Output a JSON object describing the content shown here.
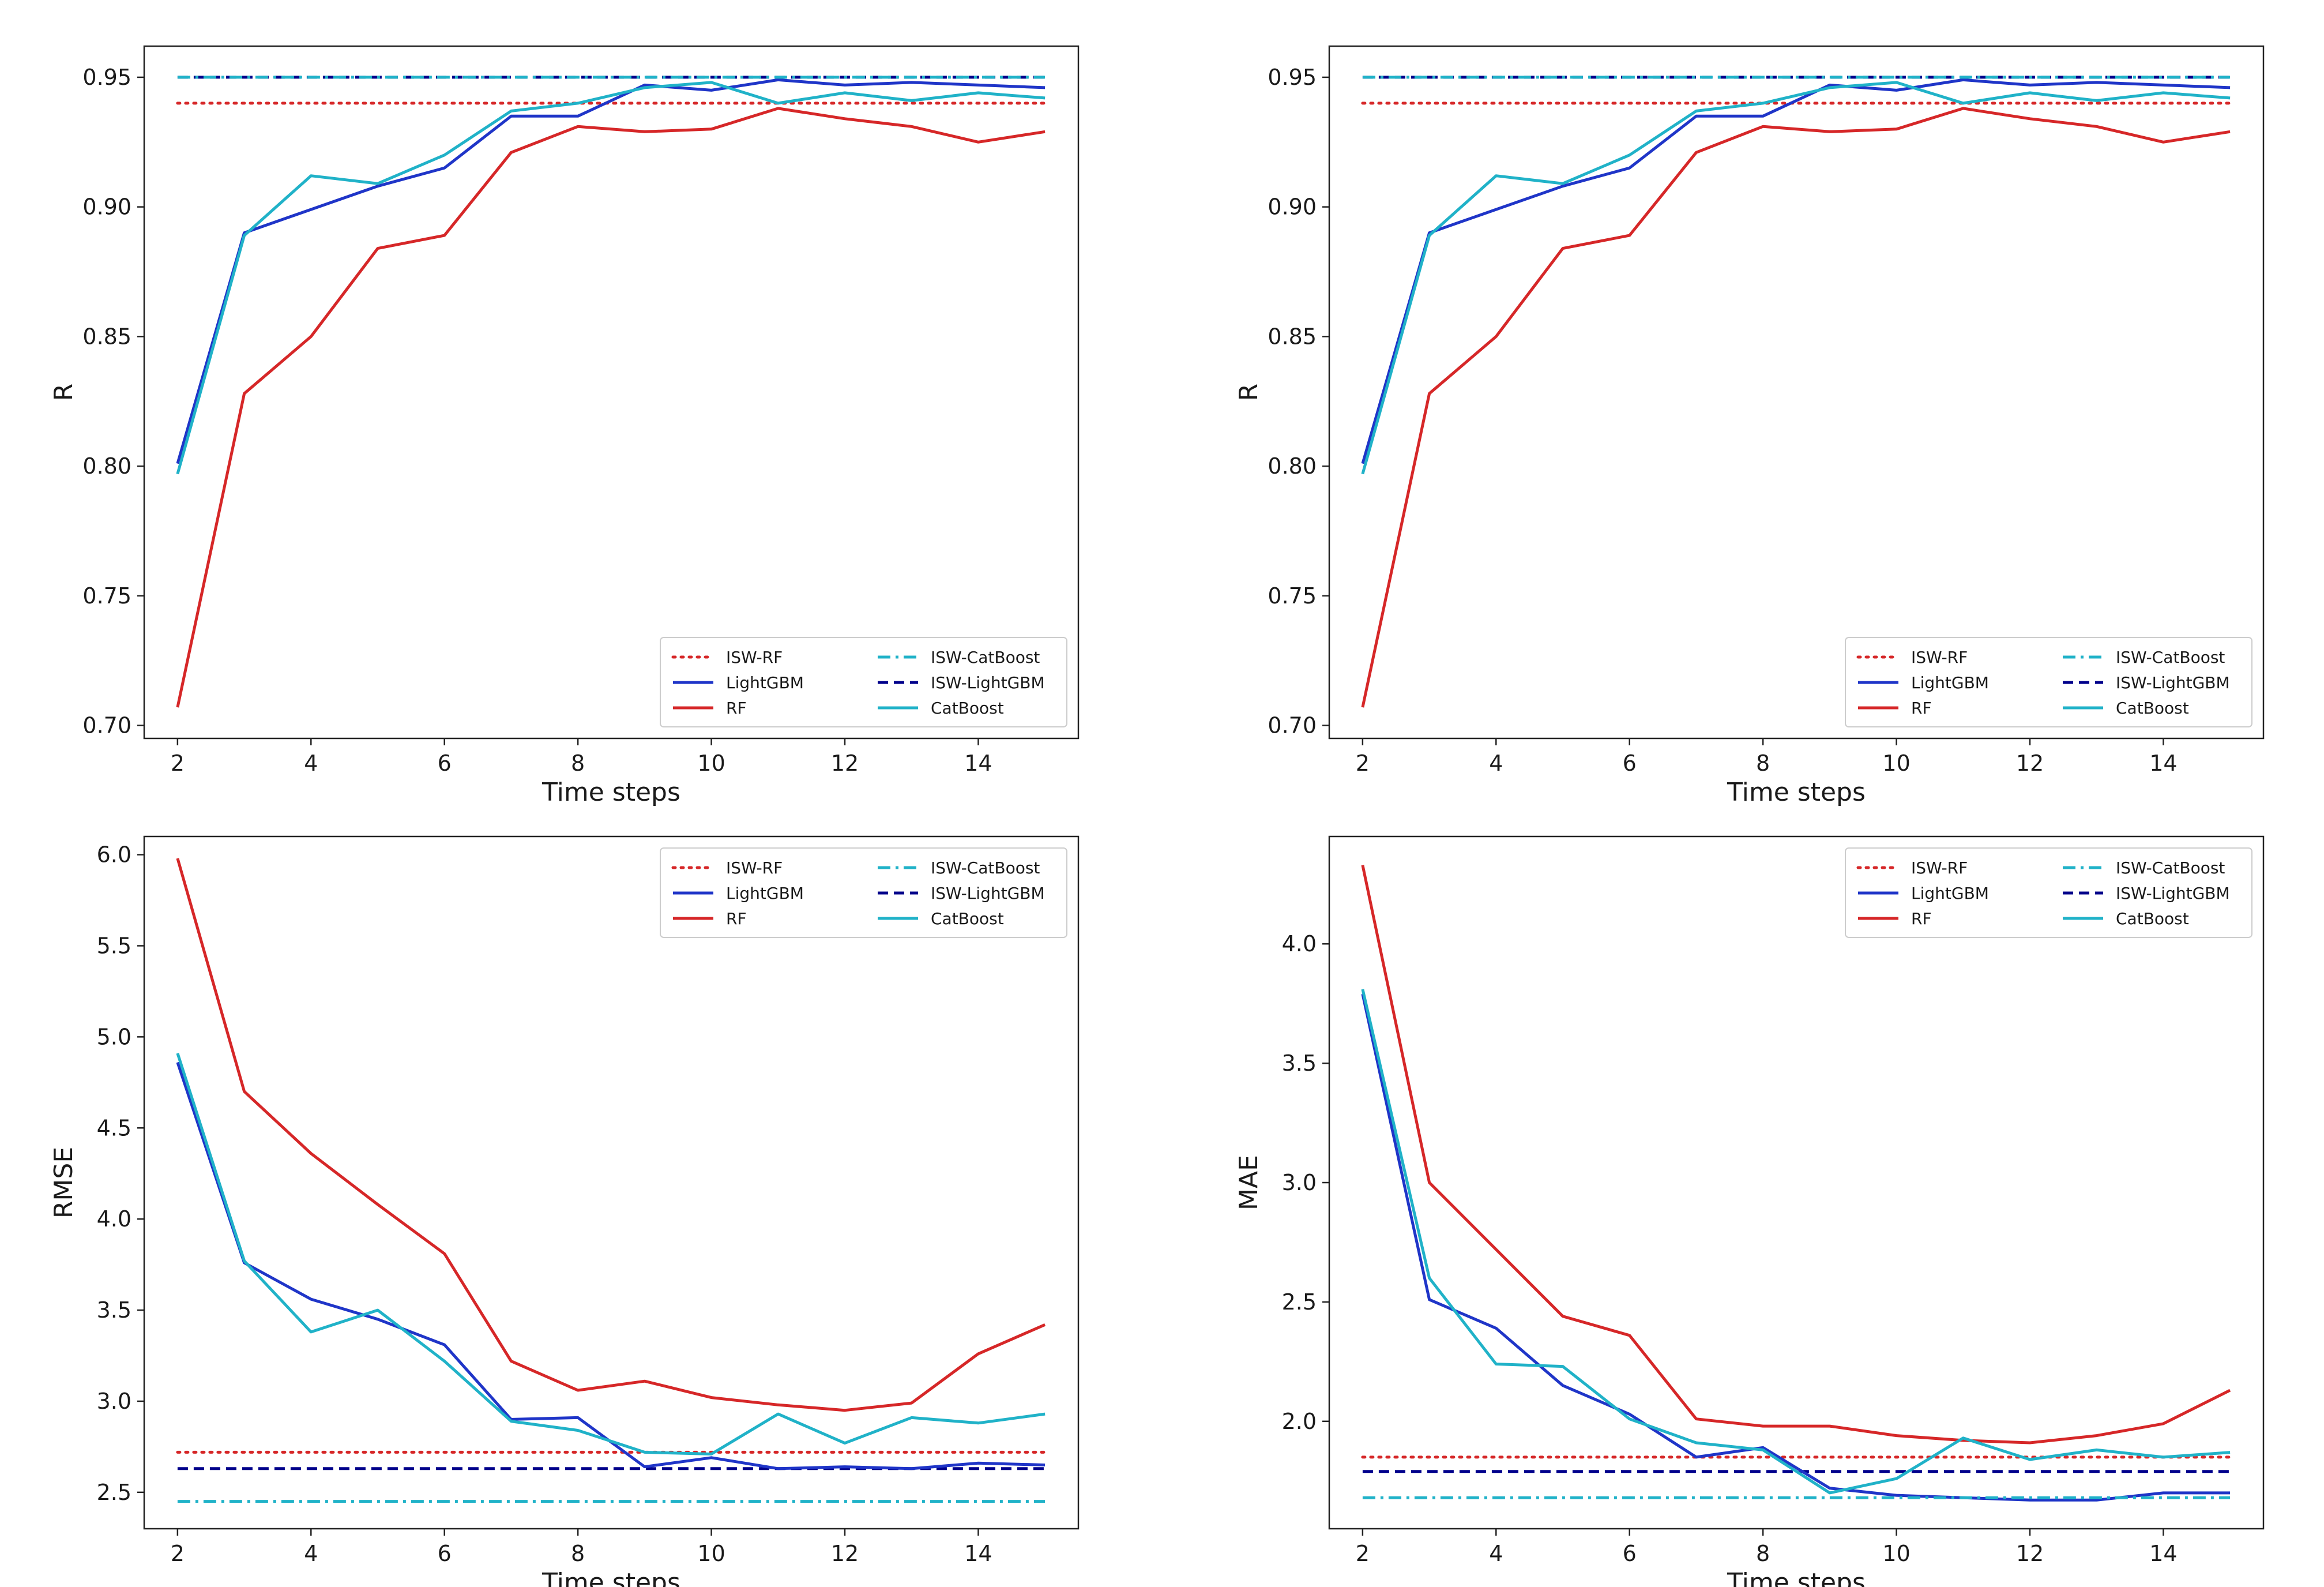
{
  "chart_data": [
    {
      "type": "line",
      "id": "r-left",
      "title": "",
      "xlabel": "Time steps",
      "ylabel": "R",
      "xlim": [
        1.5,
        15.5
      ],
      "ylim": [
        0.695,
        0.962
      ],
      "xticks": [
        2,
        4,
        6,
        8,
        10,
        12,
        14
      ],
      "xtick_labels": [
        "2",
        "4",
        "6",
        "8",
        "10",
        "12",
        "14"
      ],
      "yticks": [
        0.7,
        0.75,
        0.8,
        0.85,
        0.9,
        0.95
      ],
      "ytick_labels": [
        "0.70",
        "0.75",
        "0.80",
        "0.85",
        "0.90",
        "0.95"
      ],
      "legend_position": "lower-right",
      "x": [
        2,
        3,
        4,
        5,
        6,
        7,
        8,
        9,
        10,
        11,
        12,
        13,
        14,
        15
      ],
      "series": [
        {
          "name": "ISW-RF",
          "color": "#d62728",
          "dash": "dotted",
          "values": [
            0.94,
            0.94,
            0.94,
            0.94,
            0.94,
            0.94,
            0.94,
            0.94,
            0.94,
            0.94,
            0.94,
            0.94,
            0.94,
            0.94
          ]
        },
        {
          "name": "RF",
          "color": "#d62728",
          "dash": "solid",
          "values": [
            0.707,
            0.828,
            0.85,
            0.884,
            0.889,
            0.921,
            0.931,
            0.929,
            0.93,
            0.938,
            0.934,
            0.931,
            0.925,
            0.929
          ]
        },
        {
          "name": "ISW-LightGBM",
          "color": "#00008b",
          "dash": "dashed",
          "values": [
            0.95,
            0.95,
            0.95,
            0.95,
            0.95,
            0.95,
            0.95,
            0.95,
            0.95,
            0.95,
            0.95,
            0.95,
            0.95,
            0.95
          ]
        },
        {
          "name": "LightGBM",
          "color": "#1f35c8",
          "dash": "solid",
          "values": [
            0.801,
            0.89,
            0.899,
            0.908,
            0.915,
            0.935,
            0.935,
            0.947,
            0.945,
            0.949,
            0.947,
            0.948,
            0.947,
            0.946
          ]
        },
        {
          "name": "ISW-CatBoost",
          "color": "#20b2c8",
          "dash": "dashdot",
          "values": [
            0.95,
            0.95,
            0.95,
            0.95,
            0.95,
            0.95,
            0.95,
            0.95,
            0.95,
            0.95,
            0.95,
            0.95,
            0.95,
            0.95
          ]
        },
        {
          "name": "CatBoost",
          "color": "#20b2c8",
          "dash": "solid",
          "values": [
            0.797,
            0.889,
            0.912,
            0.909,
            0.92,
            0.937,
            0.94,
            0.946,
            0.948,
            0.94,
            0.944,
            0.941,
            0.944,
            0.942
          ]
        }
      ]
    },
    {
      "type": "line",
      "id": "r-right",
      "title": "",
      "xlabel": "Time steps",
      "ylabel": "R",
      "xlim": [
        1.5,
        15.5
      ],
      "ylim": [
        0.695,
        0.962
      ],
      "xticks": [
        2,
        4,
        6,
        8,
        10,
        12,
        14
      ],
      "xtick_labels": [
        "2",
        "4",
        "6",
        "8",
        "10",
        "12",
        "14"
      ],
      "yticks": [
        0.7,
        0.75,
        0.8,
        0.85,
        0.9,
        0.95
      ],
      "ytick_labels": [
        "0.70",
        "0.75",
        "0.80",
        "0.85",
        "0.90",
        "0.95"
      ],
      "legend_position": "lower-right",
      "x": [
        2,
        3,
        4,
        5,
        6,
        7,
        8,
        9,
        10,
        11,
        12,
        13,
        14,
        15
      ],
      "series": [
        {
          "name": "ISW-RF",
          "color": "#d62728",
          "dash": "dotted",
          "values": [
            0.94,
            0.94,
            0.94,
            0.94,
            0.94,
            0.94,
            0.94,
            0.94,
            0.94,
            0.94,
            0.94,
            0.94,
            0.94,
            0.94
          ]
        },
        {
          "name": "RF",
          "color": "#d62728",
          "dash": "solid",
          "values": [
            0.707,
            0.828,
            0.85,
            0.884,
            0.889,
            0.921,
            0.931,
            0.929,
            0.93,
            0.938,
            0.934,
            0.931,
            0.925,
            0.929
          ]
        },
        {
          "name": "ISW-LightGBM",
          "color": "#00008b",
          "dash": "dashed",
          "values": [
            0.95,
            0.95,
            0.95,
            0.95,
            0.95,
            0.95,
            0.95,
            0.95,
            0.95,
            0.95,
            0.95,
            0.95,
            0.95,
            0.95
          ]
        },
        {
          "name": "LightGBM",
          "color": "#1f35c8",
          "dash": "solid",
          "values": [
            0.801,
            0.89,
            0.899,
            0.908,
            0.915,
            0.935,
            0.935,
            0.947,
            0.945,
            0.949,
            0.947,
            0.948,
            0.947,
            0.946
          ]
        },
        {
          "name": "ISW-CatBoost",
          "color": "#20b2c8",
          "dash": "dashdot",
          "values": [
            0.95,
            0.95,
            0.95,
            0.95,
            0.95,
            0.95,
            0.95,
            0.95,
            0.95,
            0.95,
            0.95,
            0.95,
            0.95,
            0.95
          ]
        },
        {
          "name": "CatBoost",
          "color": "#20b2c8",
          "dash": "solid",
          "values": [
            0.797,
            0.889,
            0.912,
            0.909,
            0.92,
            0.937,
            0.94,
            0.946,
            0.948,
            0.94,
            0.944,
            0.941,
            0.944,
            0.942
          ]
        }
      ]
    },
    {
      "type": "line",
      "id": "rmse",
      "title": "",
      "xlabel": "Time steps",
      "ylabel": "RMSE",
      "xlim": [
        1.5,
        15.5
      ],
      "ylim": [
        2.3,
        6.1
      ],
      "xticks": [
        2,
        4,
        6,
        8,
        10,
        12,
        14
      ],
      "xtick_labels": [
        "2",
        "4",
        "6",
        "8",
        "10",
        "12",
        "14"
      ],
      "yticks": [
        2.5,
        3.0,
        3.5,
        4.0,
        4.5,
        5.0,
        5.5,
        6.0
      ],
      "ytick_labels": [
        "2.5",
        "3.0",
        "3.5",
        "4.0",
        "4.5",
        "5.0",
        "5.5",
        "6.0"
      ],
      "legend_position": "upper-right",
      "x": [
        2,
        3,
        4,
        5,
        6,
        7,
        8,
        9,
        10,
        11,
        12,
        13,
        14,
        15
      ],
      "series": [
        {
          "name": "ISW-RF",
          "color": "#d62728",
          "dash": "dotted",
          "values": [
            2.72,
            2.72,
            2.72,
            2.72,
            2.72,
            2.72,
            2.72,
            2.72,
            2.72,
            2.72,
            2.72,
            2.72,
            2.72,
            2.72
          ]
        },
        {
          "name": "RF",
          "color": "#d62728",
          "dash": "solid",
          "values": [
            5.98,
            4.7,
            4.36,
            4.08,
            3.81,
            3.22,
            3.06,
            3.11,
            3.02,
            2.98,
            2.95,
            2.99,
            3.26,
            3.42
          ]
        },
        {
          "name": "ISW-LightGBM",
          "color": "#00008b",
          "dash": "dashed",
          "values": [
            2.63,
            2.63,
            2.63,
            2.63,
            2.63,
            2.63,
            2.63,
            2.63,
            2.63,
            2.63,
            2.63,
            2.63,
            2.63,
            2.63
          ]
        },
        {
          "name": "LightGBM",
          "color": "#1f35c8",
          "dash": "solid",
          "values": [
            4.86,
            3.76,
            3.56,
            3.45,
            3.31,
            2.9,
            2.91,
            2.64,
            2.69,
            2.63,
            2.64,
            2.63,
            2.66,
            2.65
          ]
        },
        {
          "name": "ISW-CatBoost",
          "color": "#20b2c8",
          "dash": "dashdot",
          "values": [
            2.45,
            2.45,
            2.45,
            2.45,
            2.45,
            2.45,
            2.45,
            2.45,
            2.45,
            2.45,
            2.45,
            2.45,
            2.45,
            2.45
          ]
        },
        {
          "name": "CatBoost",
          "color": "#20b2c8",
          "dash": "solid",
          "values": [
            4.91,
            3.77,
            3.38,
            3.5,
            3.22,
            2.89,
            2.84,
            2.72,
            2.71,
            2.93,
            2.77,
            2.91,
            2.88,
            2.93
          ]
        }
      ]
    },
    {
      "type": "line",
      "id": "mae",
      "title": "",
      "xlabel": "Time steps",
      "ylabel": "MAE",
      "xlim": [
        1.5,
        15.5
      ],
      "ylim": [
        1.55,
        4.45
      ],
      "xticks": [
        2,
        4,
        6,
        8,
        10,
        12,
        14
      ],
      "xtick_labels": [
        "2",
        "4",
        "6",
        "8",
        "10",
        "12",
        "14"
      ],
      "yticks": [
        2.0,
        2.5,
        3.0,
        3.5,
        4.0
      ],
      "ytick_labels": [
        "2.0",
        "2.5",
        "3.0",
        "3.5",
        "4.0"
      ],
      "legend_position": "upper-right",
      "x": [
        2,
        3,
        4,
        5,
        6,
        7,
        8,
        9,
        10,
        11,
        12,
        13,
        14,
        15
      ],
      "series": [
        {
          "name": "ISW-RF",
          "color": "#d62728",
          "dash": "dotted",
          "values": [
            1.85,
            1.85,
            1.85,
            1.85,
            1.85,
            1.85,
            1.85,
            1.85,
            1.85,
            1.85,
            1.85,
            1.85,
            1.85,
            1.85
          ]
        },
        {
          "name": "RF",
          "color": "#d62728",
          "dash": "solid",
          "values": [
            4.33,
            3.0,
            2.72,
            2.44,
            2.36,
            2.01,
            1.98,
            1.98,
            1.94,
            1.92,
            1.91,
            1.94,
            1.99,
            2.13
          ]
        },
        {
          "name": "ISW-LightGBM",
          "color": "#00008b",
          "dash": "dashed",
          "values": [
            1.79,
            1.79,
            1.79,
            1.79,
            1.79,
            1.79,
            1.79,
            1.79,
            1.79,
            1.79,
            1.79,
            1.79,
            1.79,
            1.79
          ]
        },
        {
          "name": "LightGBM",
          "color": "#1f35c8",
          "dash": "solid",
          "values": [
            3.79,
            2.51,
            2.39,
            2.15,
            2.03,
            1.85,
            1.89,
            1.72,
            1.69,
            1.68,
            1.67,
            1.67,
            1.7,
            1.7
          ]
        },
        {
          "name": "ISW-CatBoost",
          "color": "#20b2c8",
          "dash": "dashdot",
          "values": [
            1.68,
            1.68,
            1.68,
            1.68,
            1.68,
            1.68,
            1.68,
            1.68,
            1.68,
            1.68,
            1.68,
            1.68,
            1.68,
            1.68
          ]
        },
        {
          "name": "CatBoost",
          "color": "#20b2c8",
          "dash": "solid",
          "values": [
            3.81,
            2.6,
            2.24,
            2.23,
            2.01,
            1.91,
            1.88,
            1.7,
            1.76,
            1.93,
            1.84,
            1.88,
            1.85,
            1.87
          ]
        }
      ]
    }
  ]
}
